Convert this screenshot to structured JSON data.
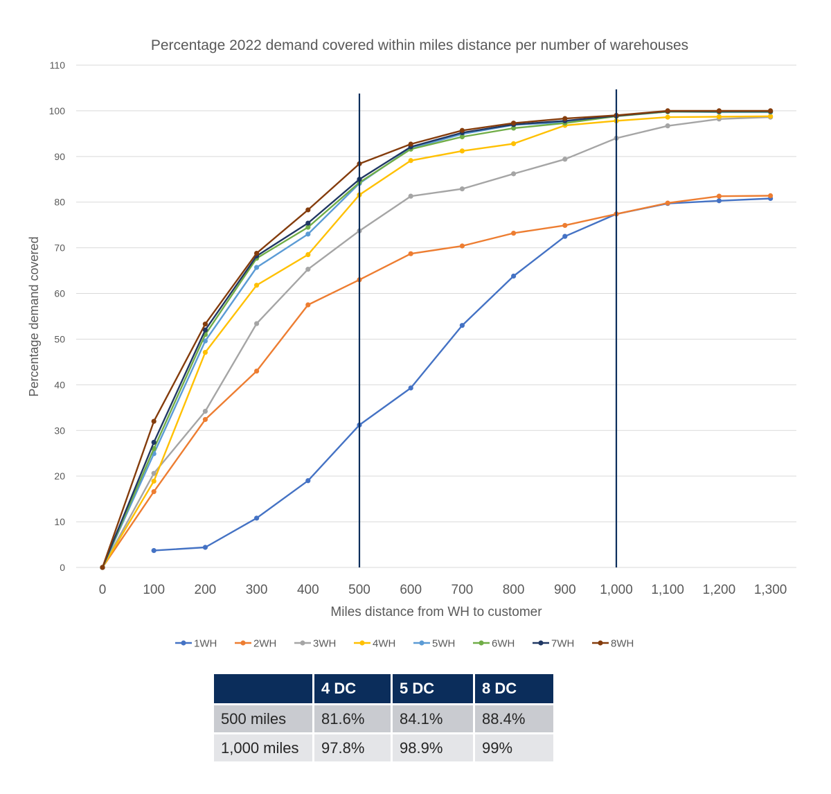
{
  "chart_data": {
    "type": "line",
    "title": "Percentage 2022 demand covered within miles distance per number of warehouses",
    "xlabel": "Miles distance from WH to customer",
    "ylabel": "Percentage demand covered",
    "x": [
      0,
      100,
      200,
      300,
      400,
      500,
      600,
      700,
      800,
      900,
      1000,
      1100,
      1200,
      1300
    ],
    "x_tick_labels": [
      "0",
      "100",
      "200",
      "300",
      "400",
      "500",
      "600",
      "700",
      "800",
      "900",
      "1,000",
      "1,100",
      "1,200",
      "1,300"
    ],
    "ylim": [
      0,
      110
    ],
    "y_ticks": [
      0,
      10,
      20,
      30,
      40,
      50,
      60,
      70,
      80,
      90,
      100,
      110
    ],
    "grid": true,
    "legend_position": "bottom",
    "reference_lines_x": [
      500,
      1000
    ],
    "series": [
      {
        "name": "1WH",
        "color": "#4472c4",
        "points": [
          [
            100,
            3.7
          ],
          [
            200,
            4.4
          ],
          [
            300,
            10.8
          ],
          [
            400,
            19.0
          ],
          [
            500,
            31.2
          ],
          [
            600,
            39.3
          ],
          [
            700,
            53.0
          ],
          [
            800,
            63.8
          ],
          [
            900,
            72.5
          ],
          [
            1000,
            77.4
          ],
          [
            1100,
            79.7
          ],
          [
            1200,
            80.3
          ],
          [
            1300,
            80.8
          ]
        ]
      },
      {
        "name": "2WH",
        "color": "#ed7d31",
        "points": [
          [
            0,
            0
          ],
          [
            100,
            16.6
          ],
          [
            200,
            32.4
          ],
          [
            300,
            43.0
          ],
          [
            400,
            57.5
          ],
          [
            500,
            63.0
          ],
          [
            600,
            68.7
          ],
          [
            700,
            70.4
          ],
          [
            800,
            73.2
          ],
          [
            900,
            74.9
          ],
          [
            1000,
            77.4
          ],
          [
            1100,
            79.8
          ],
          [
            1200,
            81.3
          ],
          [
            1300,
            81.4
          ]
        ]
      },
      {
        "name": "3WH",
        "color": "#a5a5a5",
        "points": [
          [
            0,
            0
          ],
          [
            100,
            20.6
          ],
          [
            200,
            34.2
          ],
          [
            300,
            53.4
          ],
          [
            400,
            65.3
          ],
          [
            500,
            73.7
          ],
          [
            600,
            81.3
          ],
          [
            700,
            82.9
          ],
          [
            800,
            86.2
          ],
          [
            900,
            89.4
          ],
          [
            1000,
            94.0
          ],
          [
            1100,
            96.7
          ],
          [
            1200,
            98.2
          ],
          [
            1300,
            98.6
          ]
        ]
      },
      {
        "name": "4WH",
        "color": "#ffc000",
        "points": [
          [
            0,
            0
          ],
          [
            100,
            18.9
          ],
          [
            200,
            47.1
          ],
          [
            300,
            61.8
          ],
          [
            400,
            68.5
          ],
          [
            500,
            81.6
          ],
          [
            600,
            89.1
          ],
          [
            700,
            91.2
          ],
          [
            800,
            92.8
          ],
          [
            900,
            96.8
          ],
          [
            1000,
            97.8
          ],
          [
            1100,
            98.6
          ],
          [
            1200,
            98.7
          ],
          [
            1300,
            98.8
          ]
        ]
      },
      {
        "name": "5WH",
        "color": "#5b9bd5",
        "points": [
          [
            0,
            0
          ],
          [
            100,
            24.9
          ],
          [
            200,
            49.6
          ],
          [
            300,
            65.7
          ],
          [
            400,
            73.0
          ],
          [
            500,
            84.1
          ],
          [
            600,
            91.8
          ],
          [
            700,
            94.9
          ],
          [
            800,
            96.9
          ],
          [
            900,
            97.5
          ],
          [
            1000,
            98.9
          ],
          [
            1100,
            99.8
          ],
          [
            1200,
            99.7
          ],
          [
            1300,
            99.7
          ]
        ]
      },
      {
        "name": "6WH",
        "color": "#70ad47",
        "points": [
          [
            0,
            0
          ],
          [
            100,
            26.0
          ],
          [
            200,
            51.0
          ],
          [
            300,
            67.7
          ],
          [
            400,
            74.5
          ],
          [
            500,
            84.3
          ],
          [
            600,
            91.6
          ],
          [
            700,
            94.3
          ],
          [
            800,
            96.2
          ],
          [
            900,
            97.3
          ],
          [
            1000,
            98.8
          ],
          [
            1100,
            99.8
          ],
          [
            1200,
            99.8
          ],
          [
            1300,
            99.8
          ]
        ]
      },
      {
        "name": "7WH",
        "color": "#203864",
        "points": [
          [
            0,
            0
          ],
          [
            100,
            27.4
          ],
          [
            200,
            52.0
          ],
          [
            300,
            68.2
          ],
          [
            400,
            75.4
          ],
          [
            500,
            85.0
          ],
          [
            600,
            92.1
          ],
          [
            700,
            95.2
          ],
          [
            800,
            97.0
          ],
          [
            900,
            97.8
          ],
          [
            1000,
            98.9
          ],
          [
            1100,
            99.9
          ],
          [
            1200,
            99.9
          ],
          [
            1300,
            99.9
          ]
        ]
      },
      {
        "name": "8WH",
        "color": "#843c0c",
        "points": [
          [
            0,
            0
          ],
          [
            100,
            32.0
          ],
          [
            200,
            53.3
          ],
          [
            300,
            68.8
          ],
          [
            400,
            78.3
          ],
          [
            500,
            88.4
          ],
          [
            600,
            92.7
          ],
          [
            700,
            95.7
          ],
          [
            800,
            97.3
          ],
          [
            900,
            98.3
          ],
          [
            1000,
            99.0
          ],
          [
            1100,
            100.0
          ],
          [
            1200,
            100.0
          ],
          [
            1300,
            100.0
          ]
        ]
      }
    ]
  },
  "summary_table": {
    "headers": [
      "",
      "4 DC",
      "5 DC",
      "8 DC"
    ],
    "rows": [
      [
        "500 miles",
        "81.6%",
        "84.1%",
        "88.4%"
      ],
      [
        "1,000 miles",
        "97.8%",
        "98.9%",
        "99%"
      ]
    ]
  }
}
